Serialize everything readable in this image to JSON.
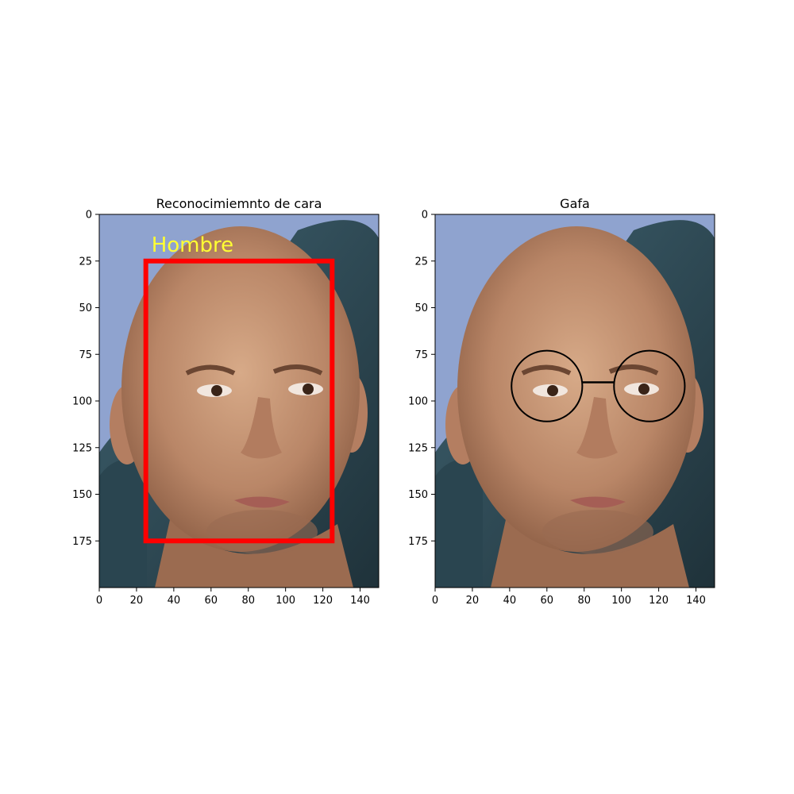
{
  "panels": [
    {
      "title": "Reconocimiemnto de cara",
      "label_text": "Hombre",
      "label_color": "#ffff33",
      "box_color": "#ff0000",
      "face_box": {
        "x0": 25,
        "y0": 25,
        "x1": 125,
        "y1": 175
      },
      "label_pos": {
        "x": 28,
        "y": 20
      },
      "xticks": [
        0,
        20,
        40,
        60,
        80,
        100,
        120,
        140
      ],
      "yticks": [
        0,
        25,
        50,
        75,
        100,
        125,
        150,
        175
      ],
      "xlim": [
        0,
        150
      ],
      "ylim": [
        200,
        0
      ]
    },
    {
      "title": "Gafa",
      "glasses_color": "#000000",
      "lens_left": {
        "cx": 60,
        "cy": 92,
        "r": 19
      },
      "lens_right": {
        "cx": 115,
        "cy": 92,
        "r": 19
      },
      "bridge": {
        "x0": 79,
        "x1": 96,
        "y": 90
      },
      "xticks": [
        0,
        20,
        40,
        60,
        80,
        100,
        120,
        140
      ],
      "yticks": [
        0,
        25,
        50,
        75,
        100,
        125,
        150,
        175
      ],
      "xlim": [
        0,
        150
      ],
      "ylim": [
        200,
        0
      ]
    }
  ],
  "colors": {
    "background_sky": "#8fa3cf",
    "skin": "#c79a7a",
    "jacket": "#2f4a55"
  }
}
